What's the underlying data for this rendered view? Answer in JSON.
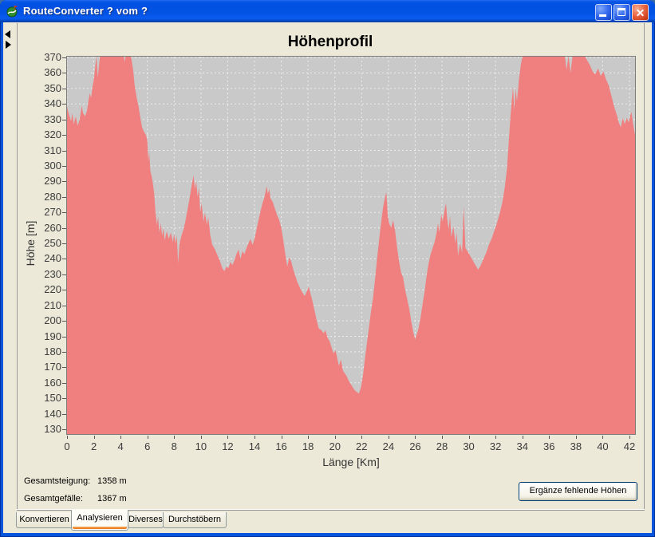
{
  "window": {
    "title": "RouteConverter ? vom ?"
  },
  "chart_data": {
    "type": "area",
    "title": "Höhenprofil",
    "xlabel": "Länge [Km]",
    "ylabel": "Höhe [m]",
    "xlim": [
      0,
      42.42
    ],
    "ylim": [
      126,
      371
    ],
    "grid": "on",
    "x_ticks": [
      0,
      2,
      4,
      6,
      8,
      10,
      12,
      14,
      16,
      18,
      20,
      22,
      24,
      26,
      28,
      30,
      32,
      34,
      36,
      38,
      40,
      42
    ],
    "y_ticks": [
      130,
      140,
      150,
      160,
      170,
      180,
      190,
      200,
      210,
      220,
      230,
      240,
      250,
      260,
      270,
      280,
      290,
      300,
      310,
      320,
      330,
      340,
      350,
      360,
      370
    ],
    "series": [
      {
        "name": "Höhenprofil",
        "color": "#f08080",
        "points": [
          [
            0,
            338
          ],
          [
            0.15,
            333
          ],
          [
            0.3,
            329
          ],
          [
            0.4,
            334
          ],
          [
            0.5,
            327
          ],
          [
            0.65,
            332
          ],
          [
            0.8,
            326
          ],
          [
            0.95,
            330
          ],
          [
            1.1,
            339
          ],
          [
            1.2,
            334
          ],
          [
            1.35,
            332
          ],
          [
            1.5,
            336
          ],
          [
            1.6,
            342
          ],
          [
            1.7,
            347
          ],
          [
            1.8,
            344
          ],
          [
            1.9,
            351
          ],
          [
            2.0,
            356
          ],
          [
            2.1,
            364
          ],
          [
            2.2,
            371
          ],
          [
            2.3,
            357
          ],
          [
            2.4,
            366
          ],
          [
            2.5,
            374
          ],
          [
            2.65,
            378
          ],
          [
            2.85,
            382
          ],
          [
            3.1,
            385
          ],
          [
            3.5,
            386
          ],
          [
            3.9,
            382
          ],
          [
            4.15,
            377
          ],
          [
            4.3,
            367
          ],
          [
            4.45,
            374
          ],
          [
            4.6,
            375
          ],
          [
            4.75,
            372
          ],
          [
            4.85,
            367
          ],
          [
            4.95,
            361
          ],
          [
            5.05,
            352
          ],
          [
            5.2,
            344
          ],
          [
            5.35,
            338
          ],
          [
            5.5,
            330
          ],
          [
            5.6,
            325
          ],
          [
            5.75,
            322
          ],
          [
            5.9,
            320
          ],
          [
            6.0,
            316
          ],
          [
            6.07,
            303
          ],
          [
            6.14,
            309
          ],
          [
            6.22,
            297
          ],
          [
            6.35,
            292
          ],
          [
            6.5,
            283
          ],
          [
            6.6,
            271
          ],
          [
            6.7,
            262
          ],
          [
            6.8,
            267
          ],
          [
            6.9,
            257
          ],
          [
            7.0,
            263
          ],
          [
            7.1,
            255
          ],
          [
            7.2,
            260
          ],
          [
            7.3,
            252
          ],
          [
            7.45,
            258
          ],
          [
            7.6,
            253
          ],
          [
            7.75,
            257
          ],
          [
            7.9,
            251
          ],
          [
            8.0,
            256
          ],
          [
            8.1,
            250
          ],
          [
            8.2,
            255
          ],
          [
            8.3,
            237
          ],
          [
            8.4,
            250
          ],
          [
            8.55,
            255
          ],
          [
            8.7,
            259
          ],
          [
            8.85,
            265
          ],
          [
            9.0,
            272
          ],
          [
            9.15,
            279
          ],
          [
            9.3,
            287
          ],
          [
            9.45,
            294
          ],
          [
            9.55,
            285
          ],
          [
            9.65,
            290
          ],
          [
            9.75,
            280
          ],
          [
            9.85,
            286
          ],
          [
            9.95,
            270
          ],
          [
            10.05,
            276
          ],
          [
            10.2,
            264
          ],
          [
            10.3,
            270
          ],
          [
            10.45,
            262
          ],
          [
            10.55,
            267
          ],
          [
            10.7,
            255
          ],
          [
            10.85,
            249
          ],
          [
            11.0,
            247
          ],
          [
            11.2,
            243
          ],
          [
            11.4,
            239
          ],
          [
            11.6,
            234
          ],
          [
            11.75,
            232
          ],
          [
            11.9,
            235
          ],
          [
            12.05,
            234
          ],
          [
            12.2,
            238
          ],
          [
            12.35,
            236
          ],
          [
            12.5,
            239
          ],
          [
            12.65,
            243
          ],
          [
            12.8,
            246
          ],
          [
            12.95,
            240
          ],
          [
            13.1,
            245
          ],
          [
            13.25,
            243
          ],
          [
            13.4,
            247
          ],
          [
            13.55,
            250
          ],
          [
            13.7,
            253
          ],
          [
            13.85,
            249
          ],
          [
            14.0,
            253
          ],
          [
            14.15,
            259
          ],
          [
            14.3,
            265
          ],
          [
            14.45,
            271
          ],
          [
            14.6,
            276
          ],
          [
            14.75,
            280
          ],
          [
            14.9,
            287
          ],
          [
            15.0,
            282
          ],
          [
            15.1,
            285
          ],
          [
            15.2,
            279
          ],
          [
            15.35,
            277
          ],
          [
            15.5,
            273
          ],
          [
            15.7,
            268
          ],
          [
            15.85,
            265
          ],
          [
            16.0,
            260
          ],
          [
            16.15,
            252
          ],
          [
            16.3,
            243
          ],
          [
            16.45,
            235
          ],
          [
            16.6,
            241
          ],
          [
            16.75,
            238
          ],
          [
            16.9,
            233
          ],
          [
            17.05,
            229
          ],
          [
            17.2,
            225
          ],
          [
            17.4,
            221
          ],
          [
            17.6,
            218
          ],
          [
            17.75,
            216
          ],
          [
            17.9,
            219
          ],
          [
            18.05,
            222
          ],
          [
            18.2,
            217
          ],
          [
            18.35,
            212
          ],
          [
            18.5,
            206
          ],
          [
            18.65,
            200
          ],
          [
            18.8,
            195
          ],
          [
            19.0,
            194
          ],
          [
            19.15,
            192
          ],
          [
            19.3,
            194
          ],
          [
            19.45,
            189
          ],
          [
            19.6,
            187
          ],
          [
            19.75,
            183
          ],
          [
            19.9,
            179
          ],
          [
            20.05,
            181
          ],
          [
            20.2,
            175
          ],
          [
            20.3,
            171
          ],
          [
            20.45,
            175
          ],
          [
            20.6,
            168
          ],
          [
            20.75,
            166
          ],
          [
            20.9,
            164
          ],
          [
            21.05,
            161
          ],
          [
            21.2,
            159
          ],
          [
            21.35,
            157
          ],
          [
            21.5,
            155
          ],
          [
            21.65,
            154
          ],
          [
            21.8,
            153
          ],
          [
            21.95,
            157
          ],
          [
            22.1,
            165
          ],
          [
            22.25,
            176
          ],
          [
            22.4,
            186
          ],
          [
            22.55,
            196
          ],
          [
            22.7,
            206
          ],
          [
            22.85,
            215
          ],
          [
            23.0,
            227
          ],
          [
            23.15,
            240
          ],
          [
            23.3,
            252
          ],
          [
            23.45,
            263
          ],
          [
            23.6,
            273
          ],
          [
            23.75,
            280
          ],
          [
            23.85,
            283
          ],
          [
            23.95,
            268
          ],
          [
            24.05,
            263
          ],
          [
            24.2,
            260
          ],
          [
            24.35,
            265
          ],
          [
            24.5,
            258
          ],
          [
            24.65,
            247
          ],
          [
            24.8,
            238
          ],
          [
            24.95,
            231
          ],
          [
            25.1,
            228
          ],
          [
            25.25,
            220
          ],
          [
            25.4,
            214
          ],
          [
            25.55,
            208
          ],
          [
            25.7,
            200
          ],
          [
            25.85,
            193
          ],
          [
            26.0,
            188
          ],
          [
            26.1,
            191
          ],
          [
            26.25,
            195
          ],
          [
            26.4,
            202
          ],
          [
            26.55,
            211
          ],
          [
            26.7,
            219
          ],
          [
            26.85,
            229
          ],
          [
            27.0,
            237
          ],
          [
            27.15,
            243
          ],
          [
            27.3,
            247
          ],
          [
            27.45,
            251
          ],
          [
            27.6,
            257
          ],
          [
            27.7,
            263
          ],
          [
            27.8,
            257
          ],
          [
            27.95,
            269
          ],
          [
            28.05,
            264
          ],
          [
            28.2,
            272
          ],
          [
            28.3,
            276
          ],
          [
            28.4,
            265
          ],
          [
            28.5,
            259
          ],
          [
            28.6,
            268
          ],
          [
            28.7,
            254
          ],
          [
            28.85,
            261
          ],
          [
            29.0,
            250
          ],
          [
            29.1,
            257
          ],
          [
            29.2,
            242
          ],
          [
            29.35,
            250
          ],
          [
            29.5,
            244
          ],
          [
            29.62,
            274
          ],
          [
            29.75,
            247
          ],
          [
            29.9,
            245
          ],
          [
            30.1,
            242
          ],
          [
            30.3,
            239
          ],
          [
            30.5,
            236
          ],
          [
            30.7,
            233
          ],
          [
            30.9,
            236
          ],
          [
            31.1,
            240
          ],
          [
            31.3,
            244
          ],
          [
            31.5,
            249
          ],
          [
            31.7,
            253
          ],
          [
            31.9,
            258
          ],
          [
            32.1,
            263
          ],
          [
            32.3,
            269
          ],
          [
            32.5,
            276
          ],
          [
            32.7,
            287
          ],
          [
            32.85,
            298
          ],
          [
            33.0,
            317
          ],
          [
            33.1,
            330
          ],
          [
            33.2,
            341
          ],
          [
            33.3,
            351
          ],
          [
            33.4,
            336
          ],
          [
            33.5,
            350
          ],
          [
            33.6,
            342
          ],
          [
            33.75,
            356
          ],
          [
            33.9,
            366
          ],
          [
            34.05,
            372
          ],
          [
            34.3,
            377
          ],
          [
            34.6,
            381
          ],
          [
            35.0,
            384
          ],
          [
            35.5,
            385
          ],
          [
            36.0,
            384
          ],
          [
            36.5,
            382
          ],
          [
            36.9,
            378
          ],
          [
            37.15,
            373
          ],
          [
            37.3,
            362
          ],
          [
            37.45,
            371
          ],
          [
            37.6,
            360
          ],
          [
            37.75,
            371
          ],
          [
            38.0,
            375
          ],
          [
            38.3,
            376
          ],
          [
            38.6,
            372
          ],
          [
            38.85,
            368
          ],
          [
            39.05,
            365
          ],
          [
            39.25,
            361
          ],
          [
            39.45,
            359
          ],
          [
            39.65,
            363
          ],
          [
            39.85,
            358
          ],
          [
            40.05,
            361
          ],
          [
            40.25,
            356
          ],
          [
            40.45,
            352
          ],
          [
            40.6,
            347
          ],
          [
            40.75,
            342
          ],
          [
            40.9,
            337
          ],
          [
            41.05,
            333
          ],
          [
            41.2,
            328
          ],
          [
            41.35,
            325
          ],
          [
            41.5,
            331
          ],
          [
            41.65,
            327
          ],
          [
            41.8,
            331
          ],
          [
            41.95,
            328
          ],
          [
            42.05,
            332
          ],
          [
            42.15,
            335
          ],
          [
            42.25,
            328
          ],
          [
            42.35,
            323
          ],
          [
            42.42,
            320
          ]
        ]
      }
    ]
  },
  "stats": {
    "rows": [
      {
        "label": "Gesamtsteigung:",
        "value": "1358 m"
      },
      {
        "label": "Gesamtgefälle:",
        "value": "1367 m"
      }
    ]
  },
  "actions": {
    "fill_heights": "Ergänze fehlende Höhen"
  },
  "tabs": [
    {
      "label": "Konvertieren",
      "active": false
    },
    {
      "label": "Analysieren",
      "active": true
    },
    {
      "label": "Diverses",
      "active": false
    },
    {
      "label": "Durchstöbern",
      "active": false
    }
  ],
  "colors": {
    "area": "#f08080",
    "plot_background": "#c9c9c9",
    "gridline": "#f2f2f2",
    "panel_background": "#ece9d8",
    "titlebar_blue": "#0353e5",
    "tab_accent_orange": "#e67820"
  }
}
